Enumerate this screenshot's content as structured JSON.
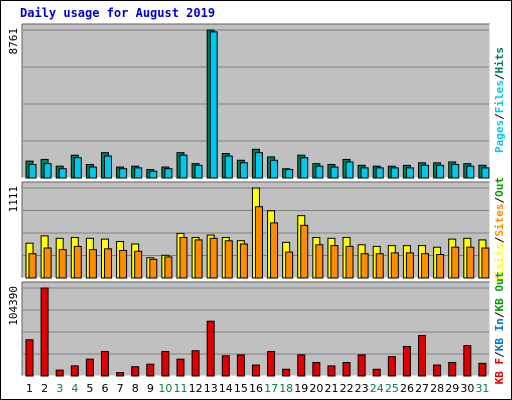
{
  "chart_data": {
    "type": "bar",
    "title": "Daily usage for August 2019",
    "categories": [
      "1",
      "2",
      "3",
      "4",
      "5",
      "6",
      "7",
      "8",
      "9",
      "10",
      "11",
      "12",
      "13",
      "14",
      "15",
      "16",
      "17",
      "18",
      "19",
      "20",
      "21",
      "22",
      "23",
      "24",
      "25",
      "26",
      "27",
      "28",
      "29",
      "30",
      "31"
    ],
    "weekend_days": [
      "3",
      "4",
      "10",
      "11",
      "17",
      "18",
      "24",
      "25",
      "31"
    ],
    "colors": {
      "hits": "#00805c",
      "files": "#00c8f0",
      "pages": "#00c8f0",
      "visits": "#ffff00",
      "sites": "#ff8c00",
      "kbin": "#0077d8",
      "kbout": "#00a000",
      "kbf": "#e00000",
      "weekday_label": "#000000",
      "weekend_label": "#008040",
      "panel_bg": "#c0c0c0",
      "bar_outline": "#000000"
    },
    "panels": [
      {
        "name": "pages-files-hits",
        "ymax_label": "8761",
        "ylim": [
          0,
          8761
        ],
        "legend": [
          "Pages",
          "/",
          "Files",
          "/",
          "Hits"
        ],
        "series": [
          {
            "name": "Hits",
            "values": [
              1000,
              1100,
              700,
              1350,
              800,
              1500,
              650,
              700,
              500,
              650,
              1500,
              850,
              8761,
              1450,
              1050,
              1700,
              1250,
              550,
              1350,
              850,
              800,
              1100,
              750,
              700,
              700,
              750,
              900,
              900,
              950,
              850,
              750
            ]
          },
          {
            "name": "Files",
            "values": [
              800,
              850,
              550,
              1200,
              650,
              1300,
              550,
              600,
              400,
              550,
              1350,
              750,
              8650,
              1300,
              900,
              1500,
              1050,
              500,
              1200,
              700,
              650,
              950,
              600,
              600,
              600,
              600,
              750,
              750,
              800,
              700,
              600
            ]
          }
        ]
      },
      {
        "name": "visits-sites",
        "ymax_label": "1111",
        "ylim": [
          0,
          1111
        ],
        "legend": [
          "Visits",
          "/",
          "Sites",
          "/",
          "Out"
        ],
        "series": [
          {
            "name": "Visits",
            "values": [
              430,
              520,
              490,
              500,
              490,
              480,
              450,
              420,
              250,
              280,
              550,
              500,
              530,
              500,
              460,
              1111,
              830,
              440,
              770,
              500,
              490,
              500,
              410,
              390,
              400,
              400,
              400,
              380,
              480,
              490,
              470
            ]
          },
          {
            "name": "Sites",
            "values": [
              300,
              370,
              350,
              390,
              350,
              360,
              340,
              330,
              230,
              260,
              500,
              470,
              490,
              460,
              420,
              880,
              680,
              320,
              650,
              410,
              400,
              390,
              300,
              300,
              310,
              310,
              300,
              290,
              380,
              380,
              370
            ]
          }
        ]
      },
      {
        "name": "kbf-kbin-kbout",
        "ymax_label": "104390",
        "ylim": [
          0,
          104390
        ],
        "legend": [
          "KB F",
          "/",
          "KB In",
          "/",
          "KB Out"
        ],
        "series": [
          {
            "name": "KB F",
            "values": [
              43000,
              104390,
              7000,
              12000,
              20000,
              29000,
              4000,
              11000,
              14000,
              29000,
              20000,
              30000,
              65000,
              24000,
              25000,
              13000,
              29000,
              8000,
              25000,
              16000,
              12000,
              16000,
              25000,
              8000,
              23000,
              35000,
              48000,
              13000,
              16000,
              36000,
              15000
            ]
          }
        ]
      }
    ]
  }
}
